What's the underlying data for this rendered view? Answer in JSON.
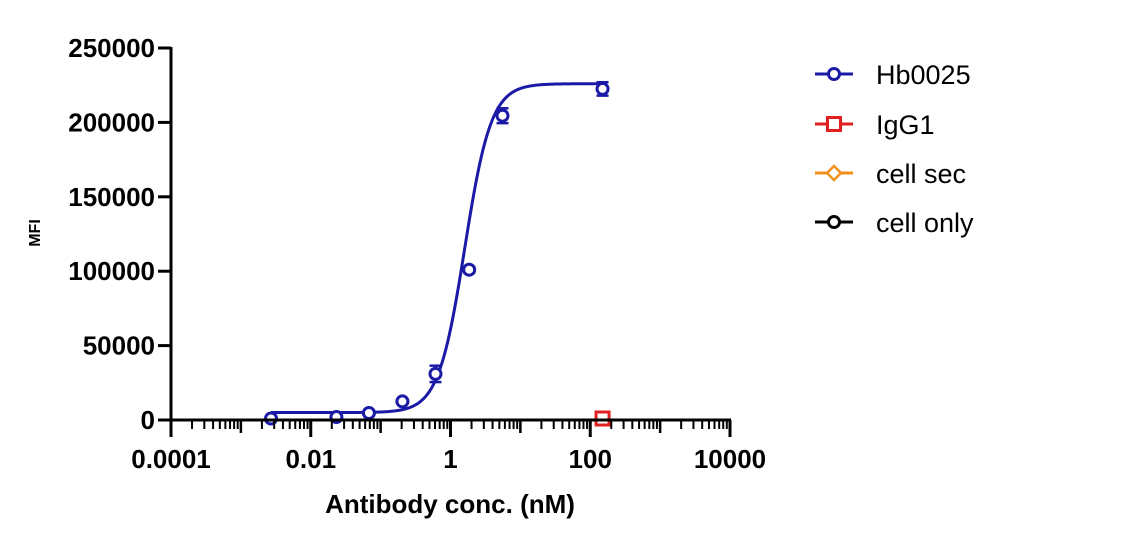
{
  "chart_data": {
    "type": "scatter",
    "xlabel": "Antibody conc. (nM)",
    "ylabel": "MFI",
    "x_scale": "log",
    "xlim": [
      0.0001,
      10000
    ],
    "ylim": [
      0,
      250000
    ],
    "x_tick_labels": [
      "0.0001",
      "0.01",
      "1",
      "100",
      "10000"
    ],
    "x_ticks": [
      0.0001,
      0.01,
      1,
      100,
      10000
    ],
    "y_tick_labels": [
      "0",
      "50000",
      "100000",
      "150000",
      "200000",
      "250000"
    ],
    "y_ticks": [
      0,
      50000,
      100000,
      150000,
      200000,
      250000
    ],
    "grid": false,
    "legend_position": "right",
    "series": [
      {
        "name": "Hb0025",
        "color": "#1a1aa6",
        "marker": "circle",
        "fit": "sigmoidal",
        "fit_params": {
          "bottom": 5000,
          "top": 226000,
          "ec50": 1.6,
          "hill": 2.3
        },
        "points": [
          {
            "x": 0.0027,
            "y": 1000,
            "err": 800
          },
          {
            "x": 0.0233,
            "y": 2000,
            "err": 900
          },
          {
            "x": 0.068,
            "y": 4700,
            "err": 1200
          },
          {
            "x": 0.205,
            "y": 12500,
            "err": 1500
          },
          {
            "x": 0.61,
            "y": 31000,
            "err": 5500
          },
          {
            "x": 1.85,
            "y": 101000,
            "err": 2000
          },
          {
            "x": 5.55,
            "y": 204500,
            "err": 5000
          },
          {
            "x": 150,
            "y": 222500,
            "err": 4500
          }
        ]
      },
      {
        "name": "IgG1",
        "color": "#e02020",
        "marker": "square",
        "points": [
          {
            "x": 150,
            "y": 1000
          }
        ]
      },
      {
        "name": "cell sec",
        "color": "#f0901a",
        "marker": "diamond",
        "points": []
      },
      {
        "name": "cell only",
        "color": "#000000",
        "marker": "circle",
        "points": []
      }
    ]
  }
}
